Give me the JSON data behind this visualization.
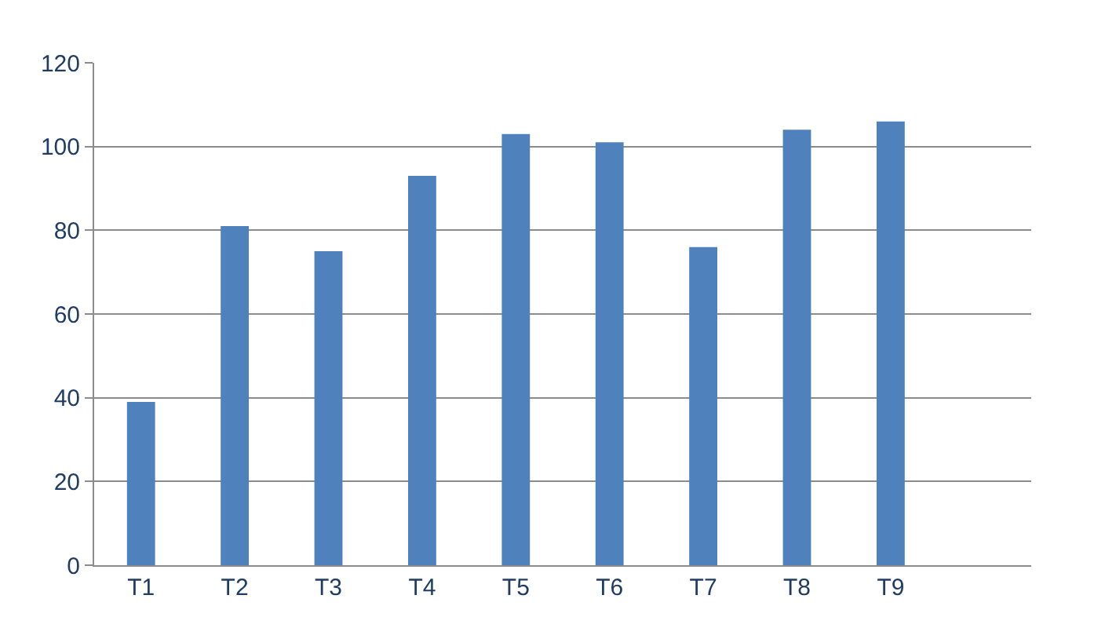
{
  "chart_data": {
    "type": "bar",
    "categories": [
      "T1",
      "T2",
      "T3",
      "T4",
      "T5",
      "T6",
      "T7",
      "T8",
      "T9"
    ],
    "series": [
      {
        "color": "#4f81bd",
        "values": [
          39,
          81,
          75,
          93,
          103,
          101,
          76,
          104,
          106
        ]
      }
    ],
    "ylim": [
      0,
      120
    ],
    "yticks": [
      0,
      20,
      40,
      60,
      80,
      100,
      120
    ],
    "grid": "y"
  }
}
